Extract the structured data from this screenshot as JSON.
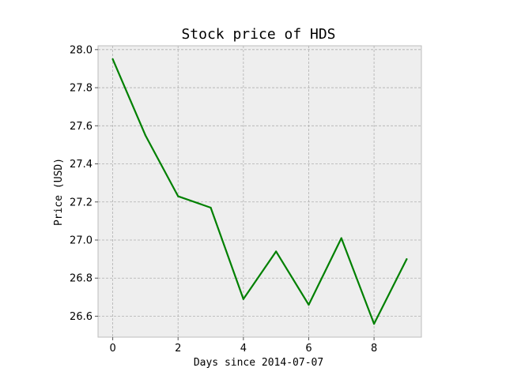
{
  "chart_data": {
    "type": "line",
    "title": "Stock price of HDS",
    "xlabel": "Days since 2014-07-07",
    "ylabel": "Price (USD)",
    "x": [
      0,
      1,
      2,
      3,
      4,
      5,
      6,
      7,
      8,
      9
    ],
    "series": [
      {
        "values": [
          27.95,
          27.55,
          27.23,
          27.17,
          26.69,
          26.94,
          26.66,
          27.01,
          26.56,
          26.9
        ],
        "color": "#008000"
      }
    ],
    "xlim": [
      -0.45,
      9.45
    ],
    "ylim": [
      26.49,
      28.02
    ],
    "xticks": [
      "0",
      "2",
      "4",
      "6",
      "8"
    ],
    "yticks": [
      "26.6",
      "26.8",
      "27.0",
      "27.2",
      "27.4",
      "27.6",
      "27.8",
      "28.0"
    ],
    "grid": true,
    "background": "#eeeeee"
  }
}
